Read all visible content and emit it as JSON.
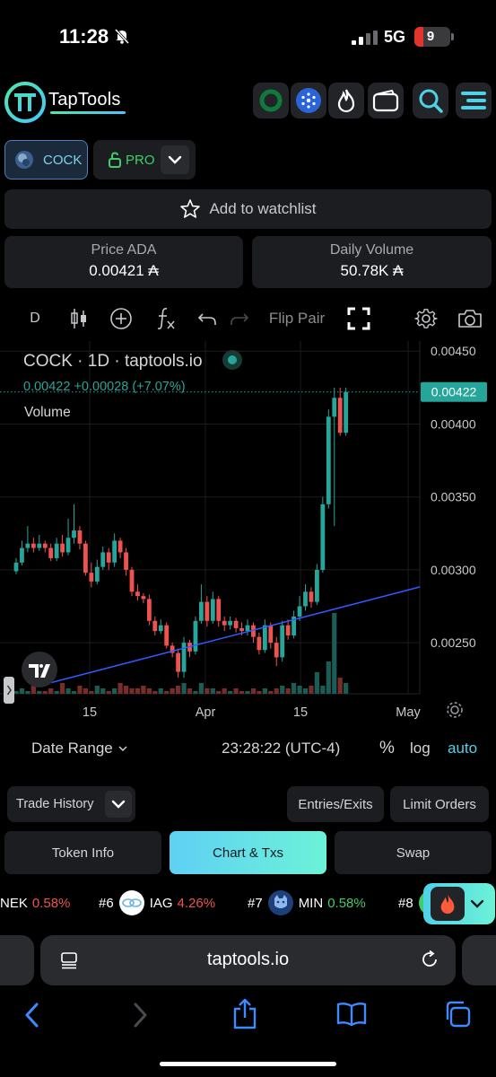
{
  "status_bar": {
    "time": "11:28",
    "network": "5G",
    "battery": "9"
  },
  "header": {
    "brand": "TapTools",
    "icons": [
      "circle-icon",
      "cardano-icon",
      "flame-icon",
      "wallet-icon",
      "search-icon",
      "menu-icon"
    ]
  },
  "token_selector": {
    "symbol": "COCK",
    "pro_label": "PRO"
  },
  "watchlist": {
    "label": "Add to watchlist"
  },
  "stats": {
    "price": {
      "label": "Price ADA",
      "value": "0.00421 ₳"
    },
    "volume": {
      "label": "Daily Volume",
      "value": "50.78K ₳"
    }
  },
  "chart_toolbar": {
    "interval": "D",
    "flip_pair": "Flip Pair"
  },
  "chart_data": {
    "type": "candlestick",
    "title": "COCK · 1D · taptools.io",
    "last_price_line": "0.00422 +0.00028 (+7.07%)",
    "volume_label": "Volume",
    "price_tag": "0.00422",
    "y_ticks": [
      "0.00450",
      "0.00400",
      "0.00350",
      "0.00300",
      "0.00250"
    ],
    "ylim": [
      0.00215,
      0.00452
    ],
    "x_ticks": [
      "15",
      "Apr",
      "15",
      "May"
    ],
    "candles": [
      {
        "o": 0.00299,
        "c": 0.00305,
        "h": 0.00308,
        "l": 0.00297
      },
      {
        "o": 0.00305,
        "c": 0.00315,
        "h": 0.0032,
        "l": 0.00303
      },
      {
        "o": 0.00315,
        "c": 0.00318,
        "h": 0.0033,
        "l": 0.00312
      },
      {
        "o": 0.00318,
        "c": 0.00315,
        "h": 0.00322,
        "l": 0.00312
      },
      {
        "o": 0.00315,
        "c": 0.00318,
        "h": 0.00324,
        "l": 0.00313
      },
      {
        "o": 0.00318,
        "c": 0.00315,
        "h": 0.0032,
        "l": 0.00312
      },
      {
        "o": 0.00315,
        "c": 0.00308,
        "h": 0.00318,
        "l": 0.00306
      },
      {
        "o": 0.00308,
        "c": 0.00318,
        "h": 0.00322,
        "l": 0.00306
      },
      {
        "o": 0.00318,
        "c": 0.00312,
        "h": 0.00324,
        "l": 0.00309
      },
      {
        "o": 0.00312,
        "c": 0.00322,
        "h": 0.00335,
        "l": 0.0031
      },
      {
        "o": 0.00322,
        "c": 0.00327,
        "h": 0.00345,
        "l": 0.00318
      },
      {
        "o": 0.00327,
        "c": 0.00318,
        "h": 0.0033,
        "l": 0.00314
      },
      {
        "o": 0.00318,
        "c": 0.00298,
        "h": 0.0032,
        "l": 0.00296
      },
      {
        "o": 0.00298,
        "c": 0.00292,
        "h": 0.00305,
        "l": 0.00288
      },
      {
        "o": 0.00292,
        "c": 0.00302,
        "h": 0.00307,
        "l": 0.0029
      },
      {
        "o": 0.00302,
        "c": 0.00312,
        "h": 0.00316,
        "l": 0.003
      },
      {
        "o": 0.00312,
        "c": 0.00305,
        "h": 0.00315,
        "l": 0.003
      },
      {
        "o": 0.00305,
        "c": 0.0032,
        "h": 0.00325,
        "l": 0.00302
      },
      {
        "o": 0.0032,
        "c": 0.00312,
        "h": 0.00322,
        "l": 0.00308
      },
      {
        "o": 0.00312,
        "c": 0.003,
        "h": 0.00315,
        "l": 0.00296
      },
      {
        "o": 0.003,
        "c": 0.00285,
        "h": 0.00302,
        "l": 0.00282
      },
      {
        "o": 0.00285,
        "c": 0.00282,
        "h": 0.0029,
        "l": 0.00279
      },
      {
        "o": 0.00282,
        "c": 0.0028,
        "h": 0.00284,
        "l": 0.00277
      },
      {
        "o": 0.0028,
        "c": 0.00265,
        "h": 0.00283,
        "l": 0.00262
      },
      {
        "o": 0.00265,
        "c": 0.00258,
        "h": 0.00268,
        "l": 0.00255
      },
      {
        "o": 0.00258,
        "c": 0.00262,
        "h": 0.00266,
        "l": 0.00256
      },
      {
        "o": 0.00262,
        "c": 0.00248,
        "h": 0.00264,
        "l": 0.00246
      },
      {
        "o": 0.00248,
        "c": 0.00243,
        "h": 0.0025,
        "l": 0.0024
      },
      {
        "o": 0.00243,
        "c": 0.0023,
        "h": 0.00246,
        "l": 0.00226
      },
      {
        "o": 0.0023,
        "c": 0.0025,
        "h": 0.00254,
        "l": 0.00226
      },
      {
        "o": 0.0025,
        "c": 0.00244,
        "h": 0.00252,
        "l": 0.0024
      },
      {
        "o": 0.00244,
        "c": 0.00265,
        "h": 0.00268,
        "l": 0.00242
      },
      {
        "o": 0.00265,
        "c": 0.00278,
        "h": 0.0029,
        "l": 0.00263
      },
      {
        "o": 0.00278,
        "c": 0.00265,
        "h": 0.00282,
        "l": 0.00261
      },
      {
        "o": 0.00265,
        "c": 0.0028,
        "h": 0.00285,
        "l": 0.00263
      },
      {
        "o": 0.0028,
        "c": 0.00265,
        "h": 0.00282,
        "l": 0.00261
      },
      {
        "o": 0.00265,
        "c": 0.00262,
        "h": 0.00268,
        "l": 0.00258
      },
      {
        "o": 0.00262,
        "c": 0.00265,
        "h": 0.00268,
        "l": 0.00259
      },
      {
        "o": 0.00265,
        "c": 0.0026,
        "h": 0.00267,
        "l": 0.00257
      },
      {
        "o": 0.0026,
        "c": 0.00258,
        "h": 0.00264,
        "l": 0.00255
      },
      {
        "o": 0.00258,
        "c": 0.00262,
        "h": 0.00266,
        "l": 0.00255
      },
      {
        "o": 0.00262,
        "c": 0.00254,
        "h": 0.00264,
        "l": 0.0025
      },
      {
        "o": 0.00254,
        "c": 0.00245,
        "h": 0.00257,
        "l": 0.00242
      },
      {
        "o": 0.00245,
        "c": 0.00262,
        "h": 0.00266,
        "l": 0.00243
      },
      {
        "o": 0.00262,
        "c": 0.0025,
        "h": 0.00264,
        "l": 0.00246
      },
      {
        "o": 0.0025,
        "c": 0.0024,
        "h": 0.00254,
        "l": 0.00234
      },
      {
        "o": 0.0024,
        "c": 0.00262,
        "h": 0.00265,
        "l": 0.00237
      },
      {
        "o": 0.00262,
        "c": 0.00255,
        "h": 0.00266,
        "l": 0.00252
      },
      {
        "o": 0.00255,
        "c": 0.00268,
        "h": 0.00272,
        "l": 0.00253
      },
      {
        "o": 0.00268,
        "c": 0.00275,
        "h": 0.00282,
        "l": 0.00265
      },
      {
        "o": 0.00275,
        "c": 0.00285,
        "h": 0.0029,
        "l": 0.00272
      },
      {
        "o": 0.00285,
        "c": 0.00278,
        "h": 0.00288,
        "l": 0.00274
      },
      {
        "o": 0.00278,
        "c": 0.003,
        "h": 0.00304,
        "l": 0.00276
      },
      {
        "o": 0.003,
        "c": 0.00345,
        "h": 0.0035,
        "l": 0.00298
      },
      {
        "o": 0.00345,
        "c": 0.00405,
        "h": 0.0041,
        "l": 0.00342
      },
      {
        "o": 0.00405,
        "c": 0.00418,
        "h": 0.00425,
        "l": 0.0033
      },
      {
        "o": 0.00418,
        "c": 0.00394,
        "h": 0.00425,
        "l": 0.00392
      },
      {
        "o": 0.00394,
        "c": 0.00422,
        "h": 0.00425,
        "l": 0.00392
      }
    ],
    "volumes": [
      1,
      2,
      1,
      3,
      1,
      1,
      2,
      1,
      4,
      2,
      1,
      3,
      2,
      1,
      3,
      2,
      1,
      2,
      4,
      3,
      2,
      2,
      3,
      2,
      1,
      2,
      1,
      2,
      3,
      4,
      2,
      1,
      4,
      2,
      2,
      1,
      2,
      1,
      2,
      1,
      1,
      2,
      1,
      2,
      1,
      2,
      3,
      2,
      4,
      3,
      2,
      3,
      8,
      3,
      12,
      30,
      6,
      4
    ]
  },
  "chart_footer": {
    "date_range": "Date Range",
    "clock": "23:28:22 (UTC-4)",
    "percent": "%",
    "log": "log",
    "auto": "auto"
  },
  "actions": {
    "trade_history": "Trade History",
    "entries_exits": "Entries/Exits",
    "limit_orders": "Limit Orders"
  },
  "tabs": [
    {
      "label": "Token Info"
    },
    {
      "label": "Chart & Txs"
    },
    {
      "label": "Swap"
    }
  ],
  "ticker": [
    {
      "symbol": "NEK",
      "change": "0.58%"
    },
    {
      "rank": "#6",
      "symbol": "IAG",
      "change": "4.26%"
    },
    {
      "rank": "#7",
      "symbol": "MIN",
      "change": "0.58%"
    },
    {
      "rank": "#8"
    }
  ],
  "browser": {
    "url": "taptools.io"
  },
  "colors": {
    "up": "#26a69a",
    "down": "#ef5350",
    "accent": "#4fd1e8",
    "trend": "#2f5bff"
  }
}
